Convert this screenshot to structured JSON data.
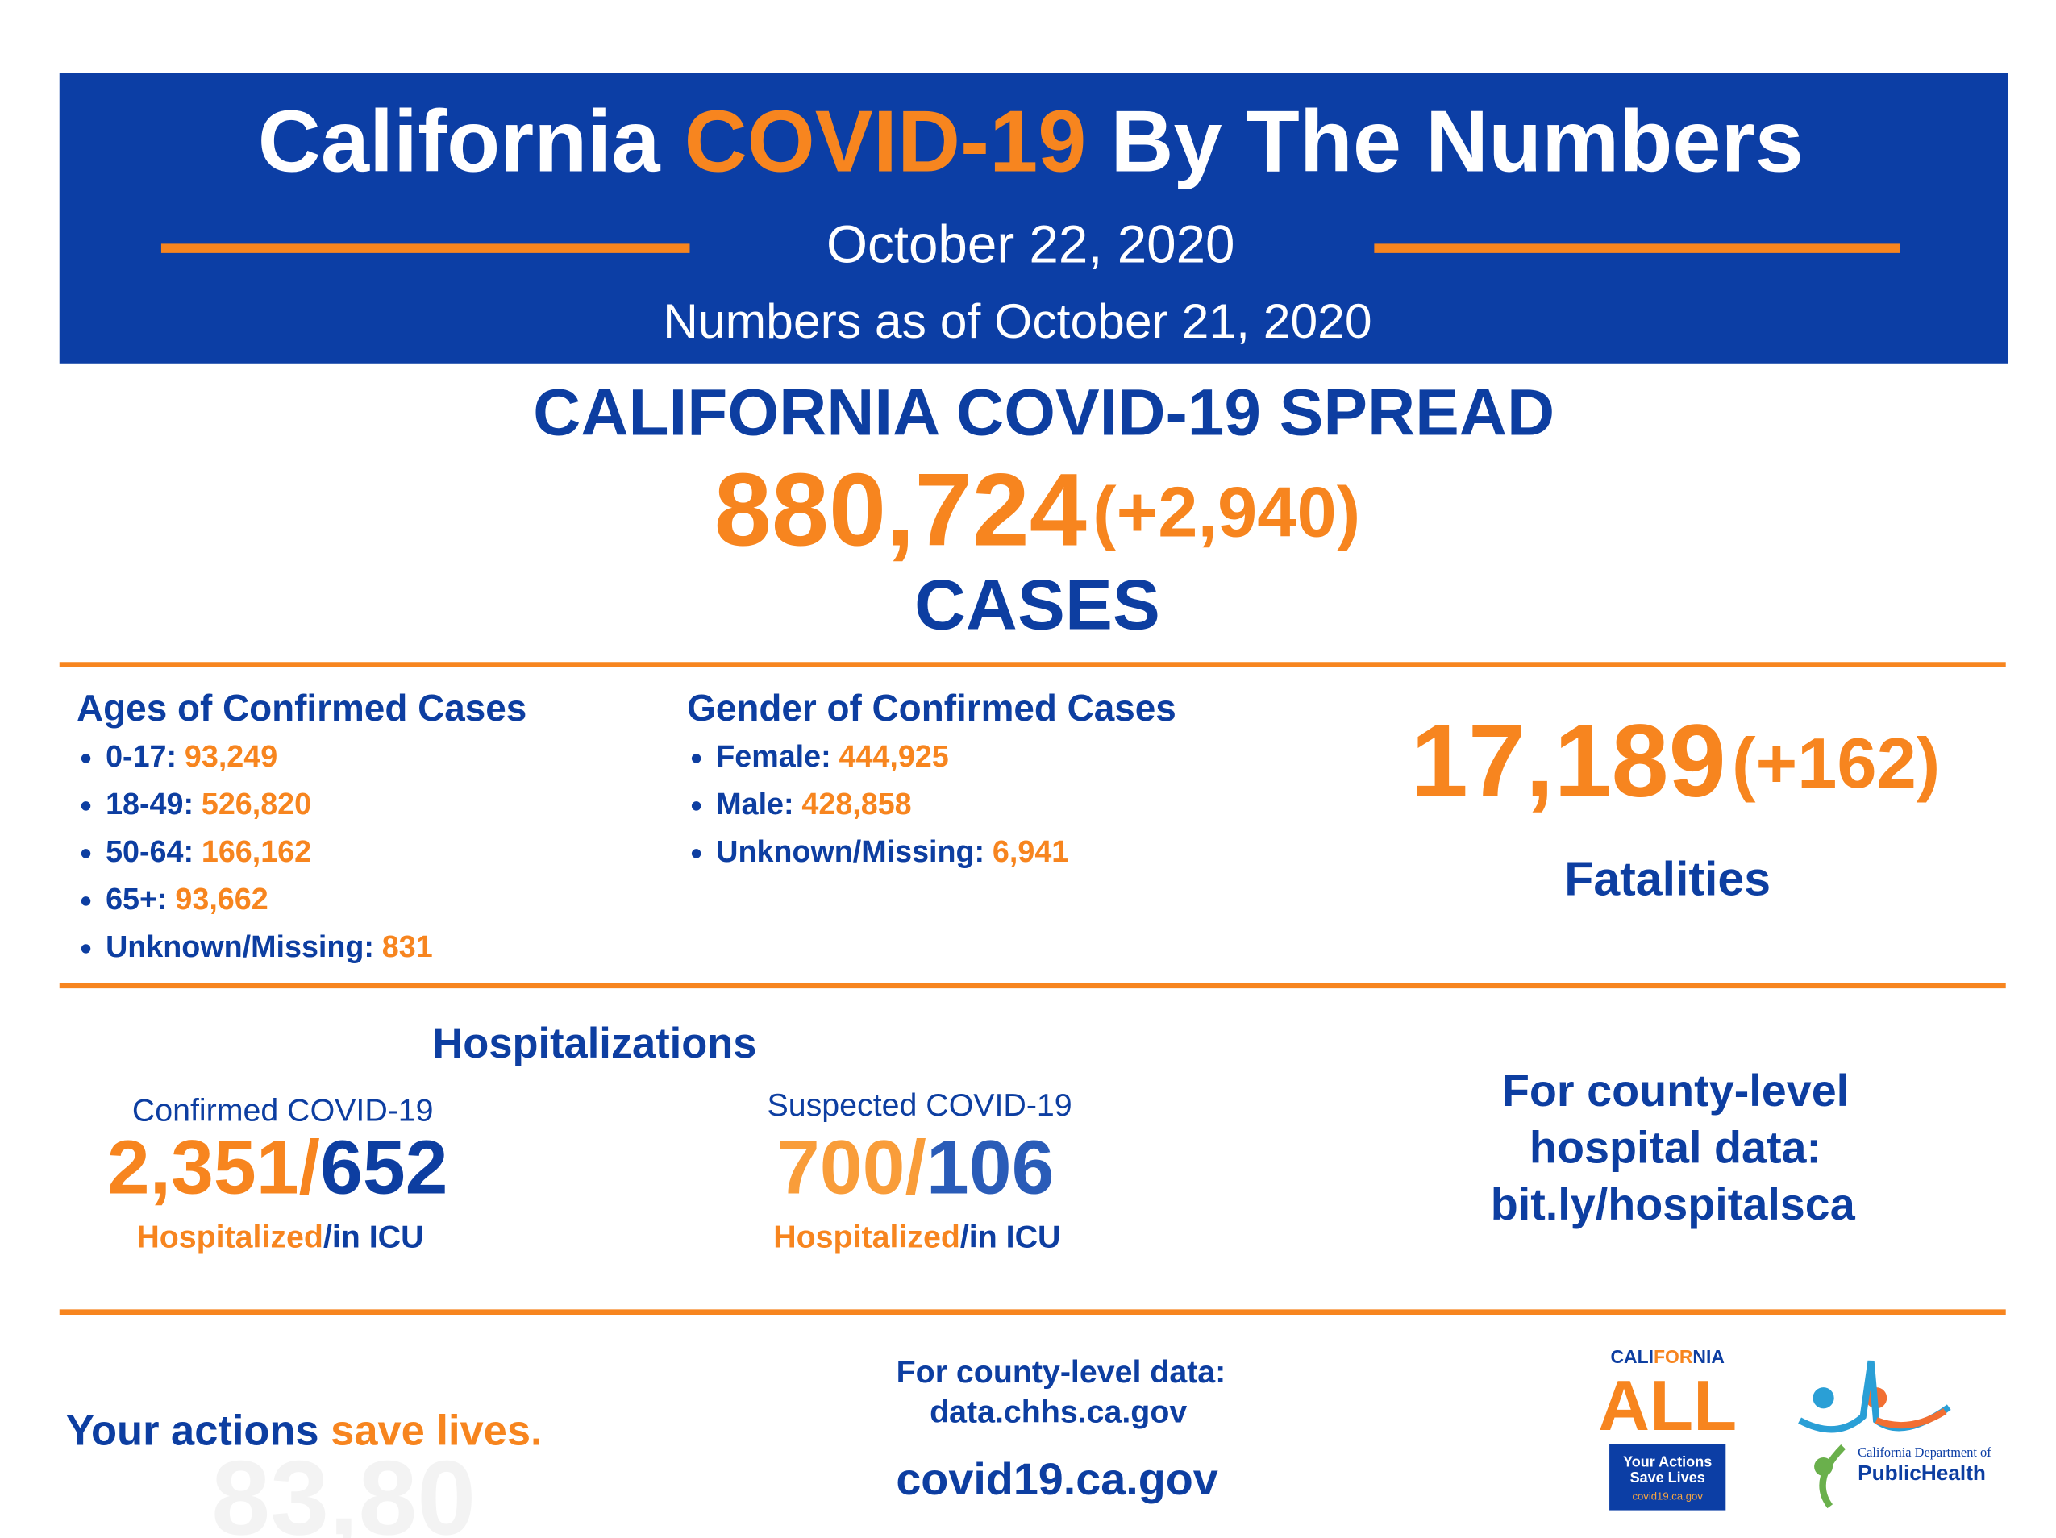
{
  "header": {
    "title_part1": "California",
    "title_highlight": "COVID-19",
    "title_part2": "By The Numbers",
    "date": "October 22, 2020",
    "numbers_as_of": "Numbers as of October 21, 2020"
  },
  "spread": {
    "title": "CALIFORNIA COVID-19 SPREAD",
    "cases": "880,724",
    "cases_change": "(+2,940)",
    "cases_label": "CASES"
  },
  "ages": {
    "title": "Ages of Confirmed Cases",
    "items": [
      {
        "label": "0-17:",
        "value": "93,249"
      },
      {
        "label": "18-49:",
        "value": "526,820"
      },
      {
        "label": "50-64:",
        "value": "166,162"
      },
      {
        "label": "65+:",
        "value": "93,662"
      },
      {
        "label": "Unknown/Missing:",
        "value": "831"
      }
    ]
  },
  "gender": {
    "title": "Gender of Confirmed Cases",
    "items": [
      {
        "label": "Female:",
        "value": "444,925"
      },
      {
        "label": "Male:",
        "value": "428,858"
      },
      {
        "label": "Unknown/Missing:",
        "value": "6,941"
      }
    ]
  },
  "fatalities": {
    "value": "17,189",
    "change": "(+162)",
    "label": "Fatalities"
  },
  "hospitalizations": {
    "title": "Hospitalizations",
    "confirmed": {
      "title": "Confirmed COVID-19",
      "hospitalized": "2,351/",
      "icu": "652",
      "hospitalized_label": "Hospitalized",
      "icu_label": "/in ICU"
    },
    "suspected": {
      "title": "Suspected COVID-19",
      "hospitalized": "700/",
      "icu": "106",
      "hospitalized_label": "Hospitalized",
      "icu_label": "/in ICU"
    },
    "county_hospital": [
      "For county-level",
      "hospital data:",
      "bit.ly/hospitalsca"
    ]
  },
  "footer": {
    "slogan_part1": "Your actions ",
    "slogan_part2": "save lives.",
    "county_data": "For county-level data:",
    "county_url": "data.chhs.ca.gov",
    "site": "covid19.ca.gov",
    "ghost_text": "83,80",
    "logo_ca_all": {
      "cali": "CALI",
      "for": "FOR",
      "nia": "NIA",
      "all": "ALL",
      "line1": "Your Actions",
      "line2": "Save Lives",
      "line3": "covid19.ca.gov"
    },
    "logo_cdph": {
      "line1": "California Department of",
      "line2": "PublicHealth"
    }
  }
}
